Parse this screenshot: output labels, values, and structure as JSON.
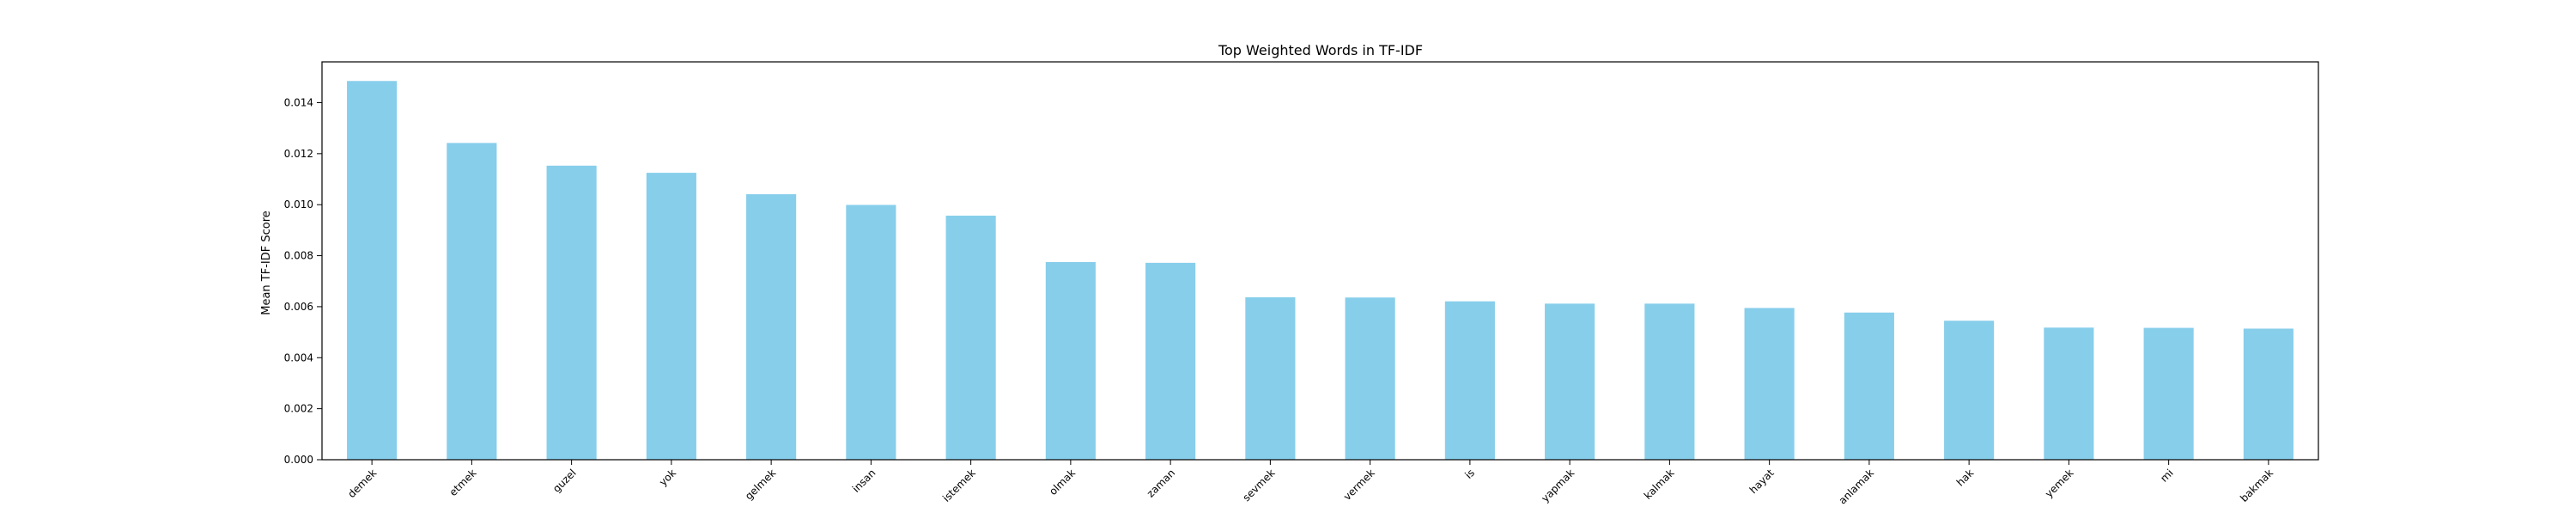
{
  "chart_data": {
    "type": "bar",
    "title": "Top Weighted Words in TF-IDF",
    "xlabel": "",
    "ylabel": "Mean TF-IDF Score",
    "categories": [
      "demek",
      "etmek",
      "guzel",
      "yok",
      "gelmek",
      "insan",
      "istemek",
      "olmak",
      "zaman",
      "sevmek",
      "vermek",
      "is",
      "yapmak",
      "kalmak",
      "hayat",
      "anlamak",
      "hak",
      "yemek",
      "mi",
      "bakmak"
    ],
    "values": [
      0.01485,
      0.01242,
      0.01153,
      0.01125,
      0.01041,
      0.00999,
      0.00957,
      0.00775,
      0.00772,
      0.00637,
      0.00636,
      0.00621,
      0.00612,
      0.00612,
      0.00595,
      0.00577,
      0.00545,
      0.00518,
      0.00517,
      0.00514
    ],
    "yticks": [
      "0.000",
      "0.002",
      "0.004",
      "0.006",
      "0.008",
      "0.010",
      "0.012",
      "0.014"
    ],
    "ylim": [
      0,
      0.0156
    ],
    "grid": false,
    "colors": {
      "bar": "#87ceeb",
      "axes": "#000000",
      "background": "#ffffff"
    }
  }
}
